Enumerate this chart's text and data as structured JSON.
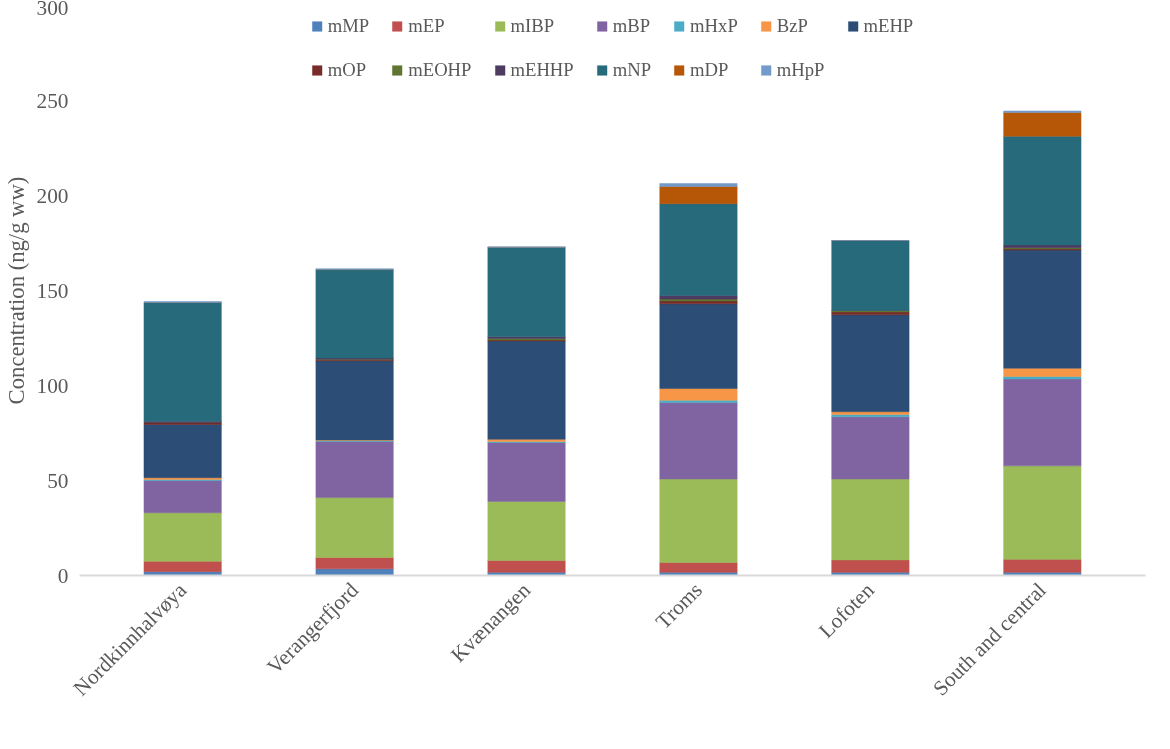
{
  "chart_data": {
    "type": "bar",
    "stacked": true,
    "ylabel": "Concentration (ng/g ww)",
    "categories": [
      "Nordkinnhalvøya",
      "Verangerfjord",
      "Kvænangen",
      "Troms",
      "Lofoten",
      "South and central"
    ],
    "ylim": [
      0,
      300
    ],
    "yticks": [
      0,
      50,
      100,
      150,
      200,
      250,
      300
    ],
    "grid": false,
    "legend": "top",
    "series": [
      {
        "name": "mMP",
        "color": "#4f81bd",
        "values": [
          2,
          3.5,
          1.7,
          1.7,
          1.7,
          1.7
        ]
      },
      {
        "name": "mEP",
        "color": "#c0504d",
        "values": [
          5.5,
          6,
          6.2,
          5.1,
          6.5,
          6.8
        ]
      },
      {
        "name": "mIBP",
        "color": "#9bbb59",
        "values": [
          25.5,
          31.5,
          31.1,
          44,
          42.6,
          49.2
        ]
      },
      {
        "name": "mBP",
        "color": "#8064a2",
        "values": [
          17,
          29.5,
          31,
          40.2,
          32.7,
          45.7
        ]
      },
      {
        "name": "mHxP",
        "color": "#4bacc6",
        "values": [
          0.5,
          0.5,
          0.5,
          1.2,
          1.2,
          1.4
        ]
      },
      {
        "name": "BzP",
        "color": "#f79646",
        "values": [
          1,
          0.3,
          1.2,
          6.2,
          1.5,
          4.3
        ]
      },
      {
        "name": "mEHP",
        "color": "#2c4d75",
        "values": [
          28,
          41.7,
          51.7,
          44.6,
          51,
          62.2
        ]
      },
      {
        "name": "mOP",
        "color": "#772c2a",
        "values": [
          1,
          0.5,
          0.5,
          1.5,
          1.5,
          0.6
        ]
      },
      {
        "name": "mEOHP",
        "color": "#5f7530",
        "values": [
          null,
          0.3,
          0.8,
          1,
          0.8,
          0.6
        ]
      },
      {
        "name": "mEHHP",
        "color": "#4d3b62",
        "values": [
          0.7,
          0.7,
          1,
          1.9,
          0,
          1.5
        ]
      },
      {
        "name": "mNP",
        "color": "#276a7c",
        "values": [
          62.5,
          46.5,
          47,
          48.3,
          36.8,
          57.2
        ]
      },
      {
        "name": "mDP",
        "color": "#b65708",
        "values": [
          0,
          0,
          0,
          9.1,
          0,
          12.5
        ]
      },
      {
        "name": "mHpP",
        "color": "#729aca",
        "values": [
          0.5,
          0.5,
          0.3,
          1.5,
          0,
          0.8
        ]
      }
    ]
  }
}
